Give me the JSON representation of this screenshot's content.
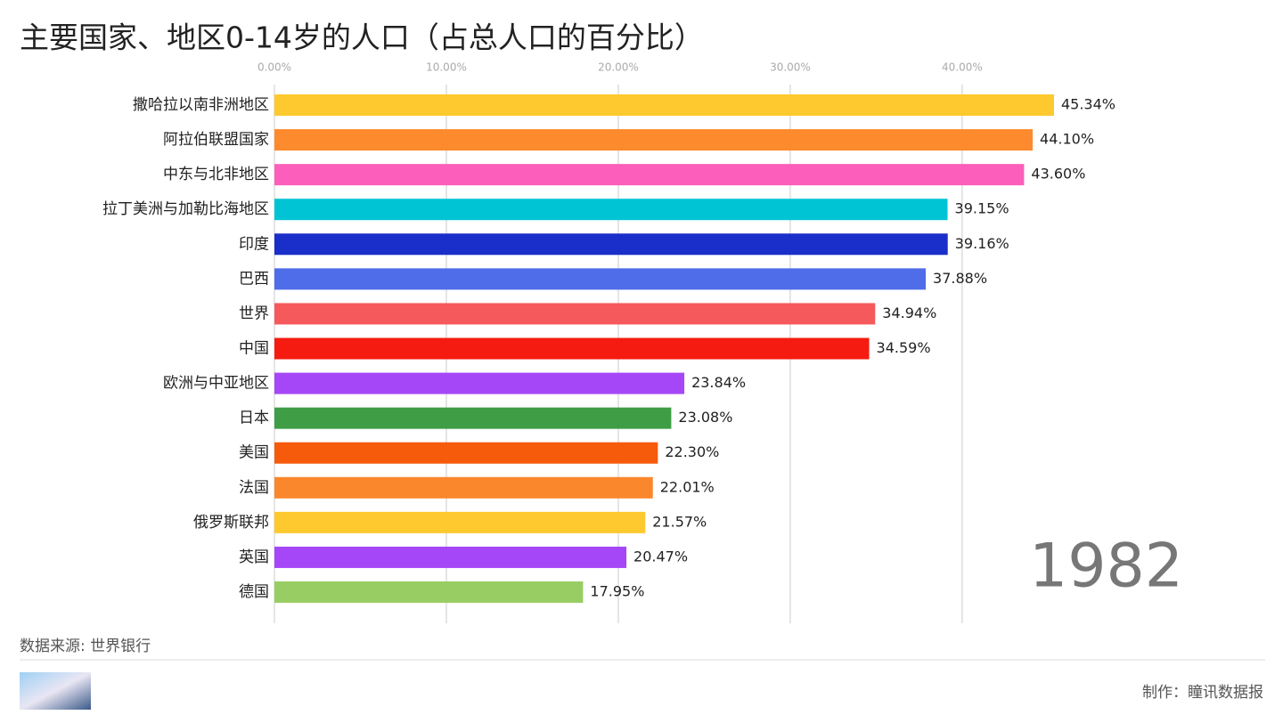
{
  "chart_data": {
    "type": "barh",
    "title": "主要国家、地区0-14岁的人口（占总人口的百分比）",
    "categories": [
      "撒哈拉以南非洲地区",
      "阿拉伯联盟国家",
      "中东与北非地区",
      "拉丁美洲与加勒比海地区",
      "印度",
      "巴西",
      "世界",
      "中国",
      "欧洲与中亚地区",
      "日本",
      "美国",
      "法国",
      "俄罗斯联邦",
      "英国",
      "德国"
    ],
    "values": [
      45.34,
      44.1,
      43.6,
      39.15,
      39.16,
      37.88,
      34.94,
      34.59,
      23.84,
      23.08,
      22.3,
      22.01,
      21.57,
      20.47,
      17.95
    ],
    "value_labels": [
      "45.34%",
      "44.10%",
      "43.60%",
      "39.15%",
      "39.16%",
      "37.88%",
      "34.94%",
      "34.59%",
      "23.84%",
      "23.08%",
      "22.30%",
      "22.01%",
      "21.57%",
      "20.47%",
      "17.95%"
    ],
    "colors": [
      "#fdc92f",
      "#fd8a2c",
      "#fb5fbb",
      "#00c4d3",
      "#1a2ec9",
      "#4f6ce9",
      "#f6595b",
      "#f51b10",
      "#a547f7",
      "#3e9d45",
      "#f65a0b",
      "#fb872c",
      "#fdc92f",
      "#a547f7",
      "#98cd64"
    ],
    "xlim": [
      0,
      57
    ],
    "xticks": [
      {
        "value": 0,
        "label": "0.00%"
      },
      {
        "value": 10,
        "label": "10.00%"
      },
      {
        "value": 20,
        "label": "20.00%"
      },
      {
        "value": 30,
        "label": "30.00%"
      },
      {
        "value": 40,
        "label": "40.00%"
      }
    ],
    "grid": true,
    "annotations": {
      "year": "1982",
      "source": "数据来源: 世界银行",
      "credit": "制作：瞳讯数据报"
    }
  }
}
